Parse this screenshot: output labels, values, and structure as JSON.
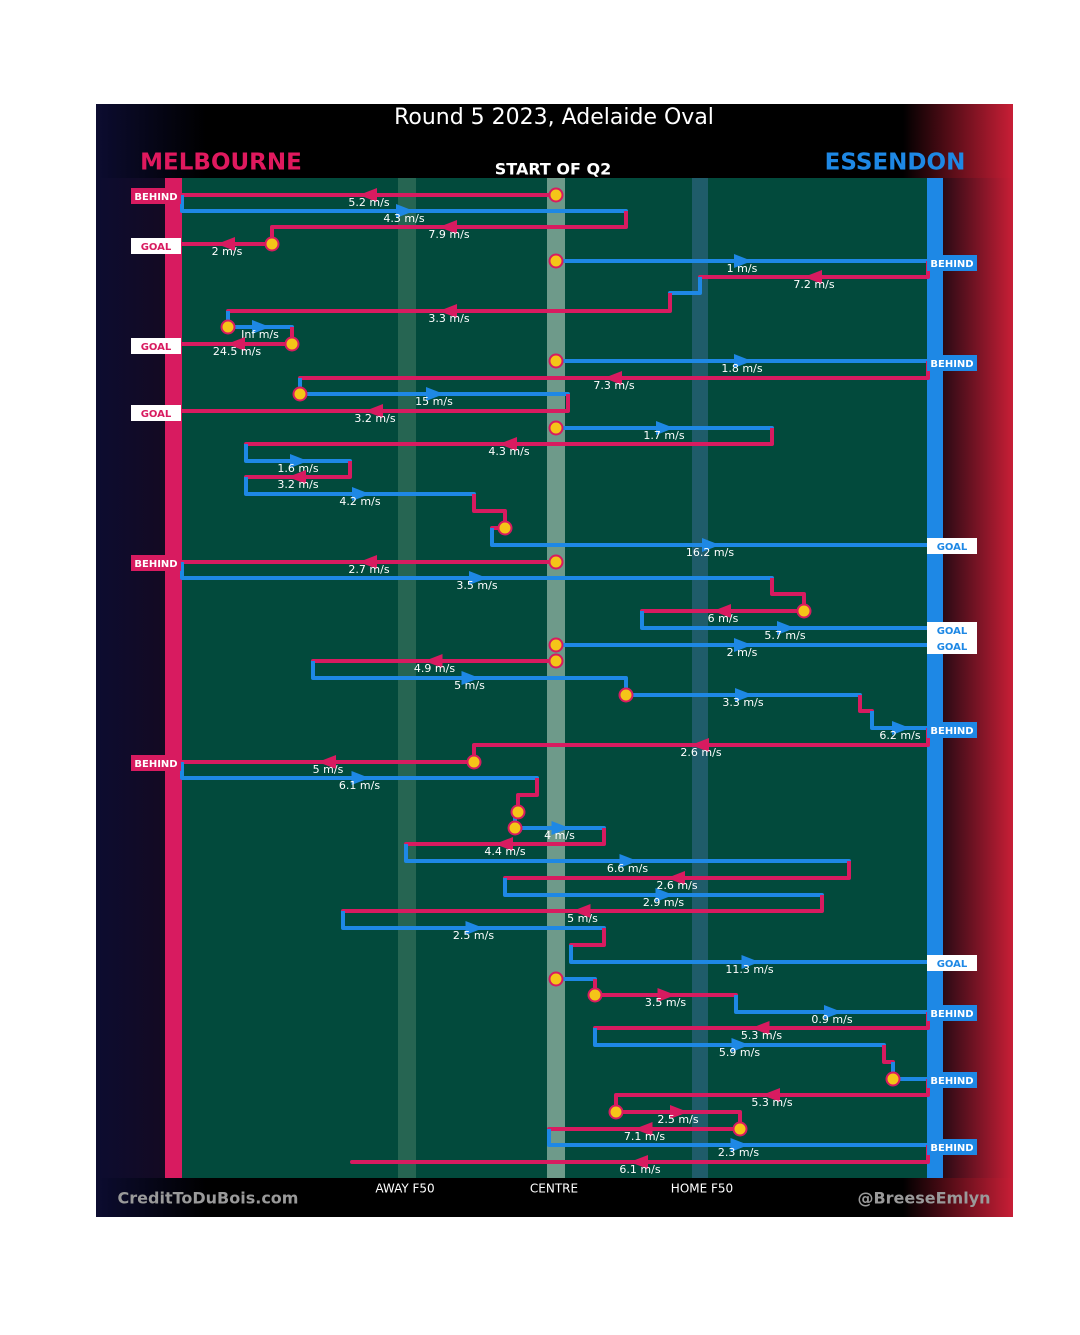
{
  "header": {
    "title": "Round 5 2023, Adelaide Oval",
    "subtitle": "START OF Q2"
  },
  "teams": {
    "left": "MELBOURNE",
    "right": "ESSENDON"
  },
  "field_labels": [
    "AWAY F50",
    "CENTRE",
    "HOME F50"
  ],
  "credits": {
    "left": "CreditToDuBois.com",
    "right": "@BreeseEmlyn"
  },
  "left_outcomes": [
    "BEHIND",
    "GOAL",
    "GOAL",
    "GOAL",
    "BEHIND",
    "BEHIND"
  ],
  "right_outcomes": [
    "BEHIND",
    "BEHIND",
    "GOAL",
    "GOAL",
    "GOAL",
    "BEHIND",
    "GOAL",
    "BEHIND",
    "BEHIND",
    "BEHIND"
  ],
  "speeds": [
    "5.2 m/s",
    "4.3 m/s",
    "7.9 m/s",
    "2 m/s",
    "1 m/s",
    "7.2 m/s",
    "3.3 m/s",
    "Inf m/s",
    "24.5 m/s",
    "1.8 m/s",
    "7.3 m/s",
    "15 m/s",
    "3.2 m/s",
    "1.7 m/s",
    "4.3 m/s",
    "1.6 m/s",
    "3.2 m/s",
    "4.2 m/s",
    "16.2 m/s",
    "2.7 m/s",
    "3.5 m/s",
    "6 m/s",
    "5.7 m/s",
    "2 m/s",
    "4.9 m/s",
    "5 m/s",
    "3.3 m/s",
    "6.2 m/s",
    "2.6 m/s",
    "5 m/s",
    "6.1 m/s",
    "4 m/s",
    "4.4 m/s",
    "6.6 m/s",
    "2.6 m/s",
    "2.9 m/s",
    "5 m/s",
    "2.5 m/s",
    "11.3 m/s",
    "3.5 m/s",
    "0.9 m/s",
    "5.3 m/s",
    "5.9 m/s",
    "5.3 m/s",
    "2.5 m/s",
    "7.1 m/s",
    "2.3 m/s",
    "6.1 m/s"
  ]
}
